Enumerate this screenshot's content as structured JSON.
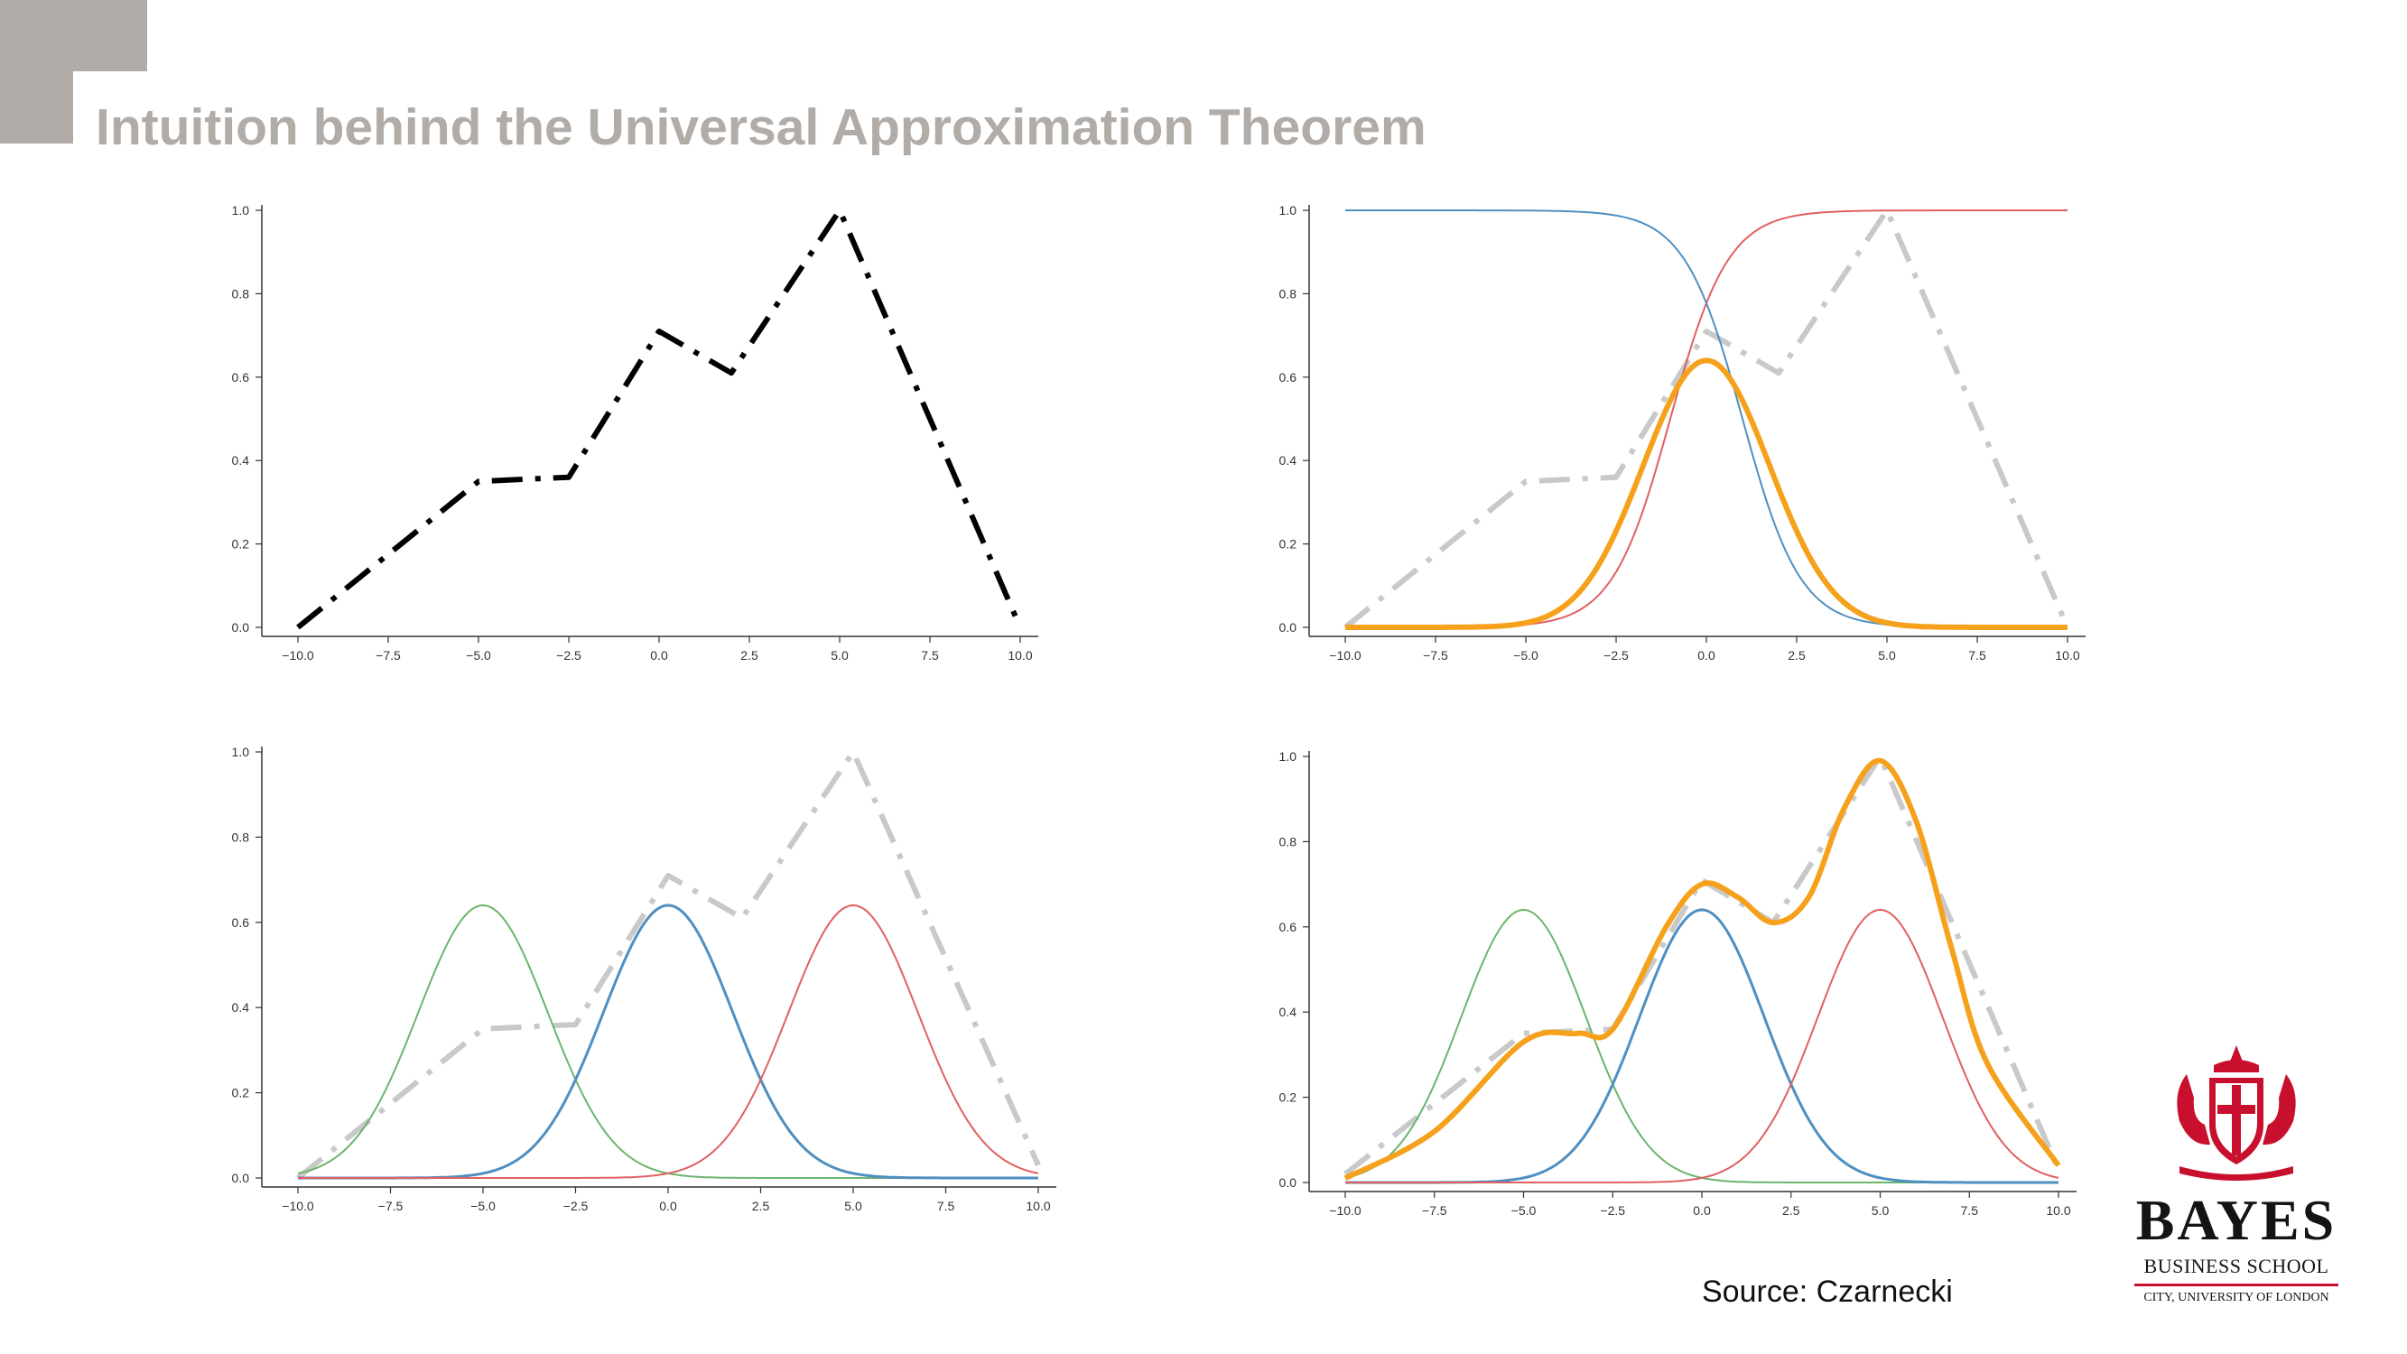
{
  "slide": {
    "title": "Intuition behind the Universal Approximation Theorem",
    "source": "Source: Czarnecki"
  },
  "logo": {
    "wordmark": "BAYES",
    "subtitle": "BUSINESS SCHOOL",
    "affiliation": "CITY, UNIVERSITY OF LONDON"
  },
  "colors": {
    "title_gray": "#b1aca7",
    "target_black": "#000000",
    "target_gray": "#c9c9c9",
    "blue": "#4f8fc0",
    "red": "#e06060",
    "green": "#6cb56c",
    "orange": "#f5a11c",
    "brand_red": "#c8102e"
  },
  "chart_data": [
    {
      "type": "line",
      "panel": "top-left",
      "xlim": [
        -10,
        10
      ],
      "ylim": [
        0,
        1
      ],
      "xticks": [
        "-10.0",
        "-7.5",
        "-5.0",
        "-2.5",
        "0.0",
        "2.5",
        "5.0",
        "7.5",
        "10.0"
      ],
      "yticks": [
        "0.0",
        "0.2",
        "0.4",
        "0.6",
        "0.8",
        "1.0"
      ],
      "series": [
        {
          "role": "target",
          "style": "dashdot",
          "color": "#000000",
          "x": [
            -10,
            -5,
            -2.5,
            0,
            2,
            5,
            10
          ],
          "y": [
            0,
            0.35,
            0.36,
            0.71,
            0.61,
            1.0,
            0
          ]
        }
      ]
    },
    {
      "type": "line",
      "panel": "top-right",
      "xlim": [
        -10,
        10
      ],
      "ylim": [
        0,
        1
      ],
      "xticks": [
        "-10.0",
        "-7.5",
        "-5.0",
        "-2.5",
        "0.0",
        "2.5",
        "5.0",
        "7.5",
        "10.0"
      ],
      "yticks": [
        "0.0",
        "0.2",
        "0.4",
        "0.6",
        "0.8",
        "1.0"
      ],
      "series": [
        {
          "role": "target",
          "style": "dashdot",
          "color": "#c9c9c9",
          "x": [
            -10,
            -5,
            -2.5,
            0,
            2,
            5,
            10
          ],
          "y": [
            0,
            0.35,
            0.36,
            0.71,
            0.61,
            1.0,
            0
          ]
        },
        {
          "role": "sigmoid-rising",
          "color": "#e06060",
          "x_range": [
            -10,
            10
          ],
          "y_start": 0.0,
          "y_end": 1.0,
          "midpoint": -1.0
        },
        {
          "role": "sigmoid-falling",
          "color": "#4f8fc0",
          "x_range": [
            -10,
            10
          ],
          "y_start": 1.0,
          "y_end": 0.0,
          "midpoint": 1.0
        },
        {
          "role": "bump",
          "color": "#f5a11c",
          "thick": true,
          "center": 0,
          "peak": 0.64,
          "tails": 0.0
        }
      ]
    },
    {
      "type": "line",
      "panel": "bottom-left",
      "xlim": [
        -10,
        10
      ],
      "ylim": [
        0,
        1
      ],
      "xticks": [
        "-10.0",
        "-7.5",
        "-5.0",
        "-2.5",
        "0.0",
        "2.5",
        "5.0",
        "7.5",
        "10.0"
      ],
      "yticks": [
        "0.0",
        "0.2",
        "0.4",
        "0.6",
        "0.8",
        "1.0"
      ],
      "series": [
        {
          "role": "target",
          "style": "dashdot",
          "color": "#c9c9c9",
          "x": [
            -10,
            -5,
            -2.5,
            0,
            2,
            5,
            10
          ],
          "y": [
            0,
            0.35,
            0.36,
            0.71,
            0.61,
            1.0,
            0.03
          ]
        },
        {
          "role": "bump",
          "color": "#6cb56c",
          "center": -5,
          "peak": 0.64
        },
        {
          "role": "bump",
          "color": "#4f8fc0",
          "thick": true,
          "center": 0,
          "peak": 0.64
        },
        {
          "role": "bump",
          "color": "#e06060",
          "center": 5,
          "peak": 0.64
        }
      ]
    },
    {
      "type": "line",
      "panel": "bottom-right",
      "xlim": [
        -10,
        10
      ],
      "ylim": [
        0,
        1
      ],
      "xticks": [
        "-10.0",
        "-7.5",
        "-5.0",
        "-2.5",
        "0.0",
        "2.5",
        "5.0",
        "7.5",
        "10.0"
      ],
      "yticks": [
        "0.0",
        "0.2",
        "0.4",
        "0.6",
        "0.8",
        "1.0"
      ],
      "series": [
        {
          "role": "target",
          "style": "dashdot",
          "color": "#c9c9c9",
          "x": [
            -10,
            -5,
            -2.5,
            0,
            2,
            5,
            10
          ],
          "y": [
            0.02,
            0.35,
            0.36,
            0.71,
            0.61,
            1.0,
            0.03
          ]
        },
        {
          "role": "bump",
          "color": "#6cb56c",
          "center": -5,
          "peak": 0.64
        },
        {
          "role": "bump",
          "color": "#4f8fc0",
          "thick": true,
          "center": 0,
          "peak": 0.64
        },
        {
          "role": "bump",
          "color": "#e06060",
          "center": 5,
          "peak": 0.64
        },
        {
          "role": "weighted-sum",
          "color": "#f5a11c",
          "thick": true,
          "x": [
            -10,
            -7.5,
            -5,
            -3.5,
            -2.5,
            -1,
            0,
            1,
            2,
            3,
            4,
            5,
            6,
            7,
            8,
            10
          ],
          "y": [
            0.01,
            0.12,
            0.33,
            0.35,
            0.36,
            0.6,
            0.7,
            0.67,
            0.61,
            0.67,
            0.88,
            0.99,
            0.85,
            0.55,
            0.28,
            0.04
          ]
        }
      ]
    }
  ]
}
